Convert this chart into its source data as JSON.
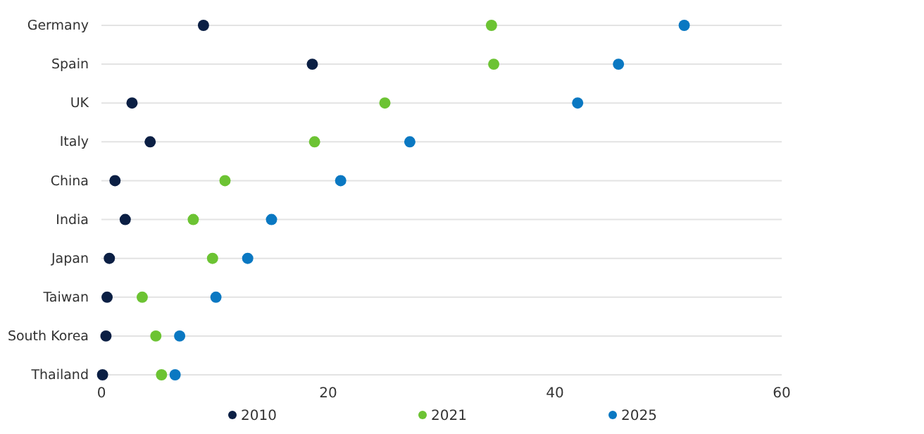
{
  "chart_data": {
    "type": "scatter",
    "orientation": "horizontal",
    "categories": [
      "Germany",
      "Spain",
      "UK",
      "Italy",
      "China",
      "India",
      "Japan",
      "Taiwan",
      "South Korea",
      "Thailand"
    ],
    "series": [
      {
        "name": "2010",
        "color": "#0b1f44",
        "values": [
          9.0,
          18.6,
          2.7,
          4.3,
          1.2,
          2.1,
          0.7,
          0.5,
          0.4,
          0.1
        ]
      },
      {
        "name": "2021",
        "color": "#6cc333",
        "values": [
          34.4,
          34.6,
          25.0,
          18.8,
          10.9,
          8.1,
          9.8,
          3.6,
          4.8,
          5.3
        ]
      },
      {
        "name": "2025",
        "color": "#0a78c2",
        "values": [
          51.4,
          45.6,
          42.0,
          27.2,
          21.1,
          15.0,
          12.9,
          10.1,
          6.9,
          6.5
        ]
      }
    ],
    "xlim": [
      0,
      60
    ],
    "xticks": [
      0,
      20,
      40,
      60
    ],
    "grid": "y",
    "legend": "bottom",
    "marker": "circle"
  }
}
